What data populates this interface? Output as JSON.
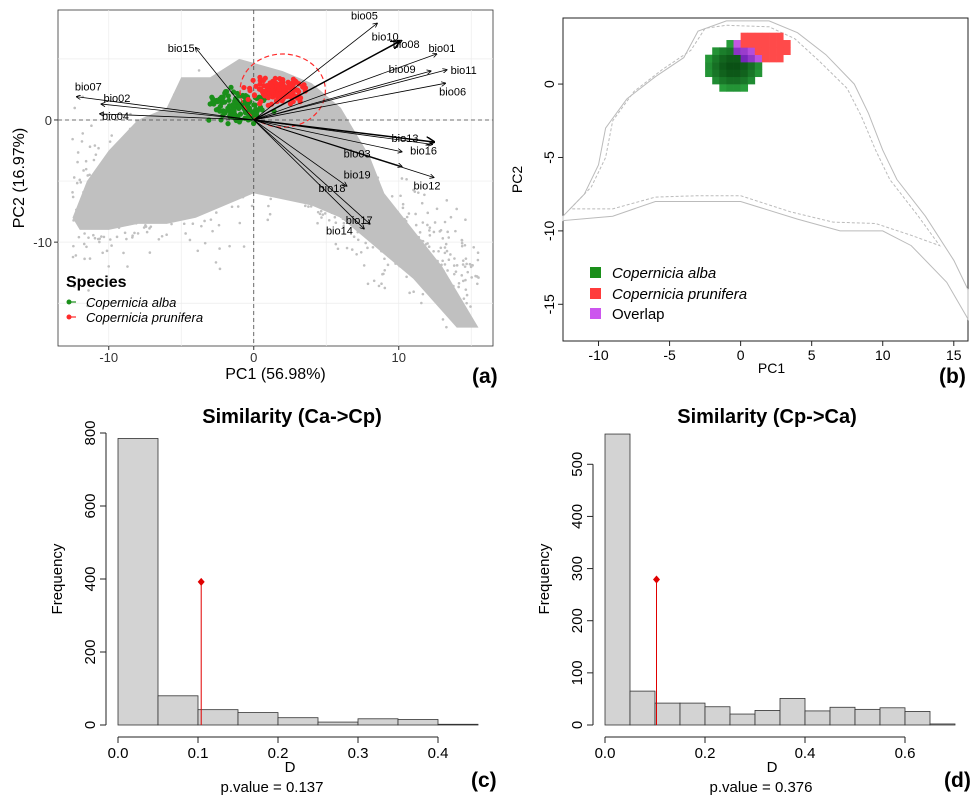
{
  "panel_a": {
    "xlabel": "PC1 (56.98%)",
    "ylabel": "PC2 (16.97%)",
    "xticks": [
      "-10",
      "0",
      "10"
    ],
    "yticks": [
      "0",
      "-10"
    ],
    "legend_title": "Species",
    "legend_items": [
      "Copernicia alba",
      "Copernicia prunifera"
    ],
    "letter": "(a)",
    "arrow_labels": [
      "bio05",
      "bio10",
      "bio08",
      "bio01",
      "bio09",
      "bio11",
      "bio06",
      "bio15",
      "bio07",
      "bio02",
      "bio04",
      "bio13",
      "bio16",
      "bio03",
      "bio19",
      "bio12",
      "bio18",
      "bio17",
      "bio14"
    ]
  },
  "panel_b": {
    "xlabel": "PC1",
    "ylabel": "PC2",
    "xticks": [
      "-10",
      "-5",
      "0",
      "5",
      "10",
      "15"
    ],
    "yticks": [
      "0",
      "-5",
      "-10",
      "-15"
    ],
    "legend_items": [
      "Copernicia alba",
      "Copernicia prunifera",
      "Overlap"
    ],
    "letter": "(b)"
  },
  "panel_c": {
    "title": "Similarity (Ca->Cp)",
    "xlabel": "D",
    "ylabel": "Frequency",
    "xticks": [
      "0.0",
      "0.1",
      "0.2",
      "0.3",
      "0.4"
    ],
    "yticks": [
      "0",
      "200",
      "400",
      "600",
      "800"
    ],
    "pvalue_label": "p.value = 0.137",
    "letter": "(c)"
  },
  "panel_d": {
    "title": "Similarity (Cp->Ca)",
    "xlabel": "D",
    "ylabel": "Frequency",
    "xticks": [
      "0.0",
      "0.2",
      "0.4",
      "0.6"
    ],
    "yticks": [
      "0",
      "100",
      "200",
      "300",
      "400",
      "500"
    ],
    "pvalue_label": "p.value = 0.376",
    "letter": "(d)"
  },
  "colors": {
    "alba": "#1a8f1a",
    "prunifera": "#ff2a2a",
    "overlap": "#cc55ee",
    "background_cloud": "#c0c0c0",
    "hist_bar": "#d3d3d3",
    "observed_line": "#e00000"
  },
  "chart_data": [
    {
      "type": "scatter",
      "panel": "a",
      "xlabel": "PC1 (56.98%)",
      "ylabel": "PC2 (16.97%)",
      "xlim": [
        -13.5,
        16.5
      ],
      "ylim": [
        -18.5,
        9
      ],
      "legend": "bottom-left",
      "series": [
        {
          "name": "Copernicia alba",
          "x": [
            -2.5,
            -1.8,
            -1.0,
            -0.5,
            0.0,
            0.3,
            -1.5,
            -2.0
          ],
          "y": [
            1.5,
            0.8,
            2.0,
            1.0,
            0.5,
            1.8,
            0.3,
            2.2
          ]
        },
        {
          "name": "Copernicia prunifera",
          "x": [
            0.5,
            1.5,
            2.5,
            3.2,
            1.0,
            2.0,
            3.5,
            0.8
          ],
          "y": [
            2.5,
            3.0,
            2.0,
            1.5,
            1.2,
            3.3,
            2.6,
            2.0
          ]
        }
      ],
      "loadings": [
        {
          "name": "bio05",
          "x": 8.5,
          "y": 7.9
        },
        {
          "name": "bio10",
          "x": 10.2,
          "y": 6.5
        },
        {
          "name": "bio08",
          "x": 10.0,
          "y": 6.4
        },
        {
          "name": "bio01",
          "x": 12.6,
          "y": 5.4
        },
        {
          "name": "bio09",
          "x": 12.2,
          "y": 4.0
        },
        {
          "name": "bio11",
          "x": 13.3,
          "y": 4.1
        },
        {
          "name": "bio06",
          "x": 13.2,
          "y": 3.0
        },
        {
          "name": "bio15",
          "x": -4.0,
          "y": 5.9
        },
        {
          "name": "bio07",
          "x": -12.2,
          "y": 1.9
        },
        {
          "name": "bio02",
          "x": -10.5,
          "y": 1.3
        },
        {
          "name": "bio04",
          "x": -10.6,
          "y": 0.5
        },
        {
          "name": "bio13",
          "x": 12.4,
          "y": -1.8
        },
        {
          "name": "bio16",
          "x": 12.3,
          "y": -2.0
        },
        {
          "name": "bio03",
          "x": 10.2,
          "y": -2.6
        },
        {
          "name": "bio19",
          "x": 10.2,
          "y": -3.8
        },
        {
          "name": "bio12",
          "x": 12.4,
          "y": -4.7
        },
        {
          "name": "bio18",
          "x": 6.4,
          "y": -5.4
        },
        {
          "name": "bio17",
          "x": 8.0,
          "y": -8.5
        },
        {
          "name": "bio14",
          "x": 7.6,
          "y": -8.9
        }
      ]
    },
    {
      "type": "heatmap",
      "panel": "b",
      "xlabel": "PC1",
      "ylabel": "PC2",
      "xlim": [
        -12.5,
        16
      ],
      "ylim": [
        -17.5,
        4.5
      ],
      "legend": "bottom-left",
      "series": [
        {
          "name": "Copernicia alba",
          "x_range": [
            -3.5,
            2.0
          ],
          "y_range": [
            -1.0,
            3.0
          ]
        },
        {
          "name": "Copernicia prunifera",
          "x_range": [
            -0.5,
            3.5
          ],
          "y_range": [
            0.8,
            3.5
          ]
        },
        {
          "name": "Overlap",
          "x_range": [
            -1.5,
            1.5
          ],
          "y_range": [
            0.8,
            3.0
          ]
        }
      ]
    },
    {
      "type": "bar",
      "panel": "c",
      "title": "Similarity (Ca->Cp)",
      "xlabel": "D",
      "ylabel": "Frequency",
      "bin_edges": [
        0.0,
        0.05,
        0.1,
        0.15,
        0.2,
        0.25,
        0.3,
        0.35,
        0.4,
        0.45
      ],
      "values": [
        785,
        80,
        42,
        34,
        20,
        8,
        17,
        15,
        2
      ],
      "observed_D": 0.104,
      "observed_marker_height": 392,
      "p_value": 0.137,
      "xlim": [
        0,
        0.45
      ],
      "ylim": [
        0,
        800
      ]
    },
    {
      "type": "bar",
      "panel": "d",
      "title": "Similarity (Cp->Ca)",
      "xlabel": "D",
      "ylabel": "Frequency",
      "bin_edges": [
        0.0,
        0.05,
        0.1,
        0.15,
        0.2,
        0.25,
        0.3,
        0.35,
        0.4,
        0.45,
        0.5,
        0.55,
        0.6,
        0.65,
        0.7
      ],
      "values": [
        558,
        65,
        42,
        42,
        35,
        21,
        28,
        51,
        27,
        34,
        30,
        33,
        26,
        2
      ],
      "observed_D": 0.103,
      "observed_marker_height": 279,
      "p_value": 0.376,
      "xlim": [
        0,
        0.7
      ],
      "ylim": [
        0,
        560
      ]
    }
  ]
}
